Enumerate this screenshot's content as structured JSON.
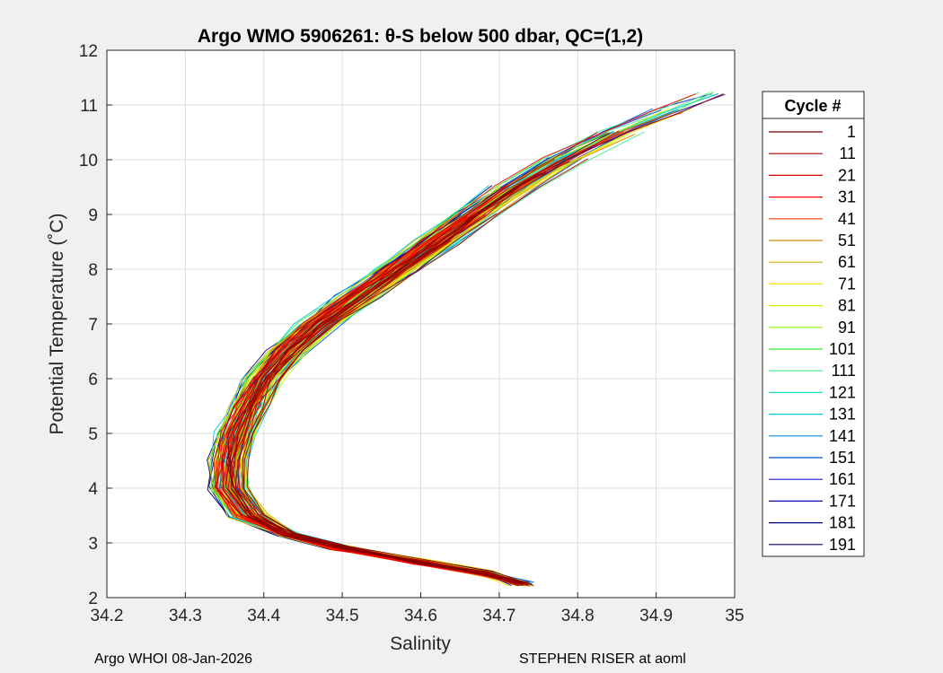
{
  "chart_data": {
    "type": "line",
    "title": "Argo WMO 5906261: θ-S below 500 dbar,  QC=(1,2)",
    "xlabel": "Salinity",
    "ylabel": "Potential Temperature (˚C)",
    "xlim": [
      34.2,
      35
    ],
    "ylim": [
      2,
      12
    ],
    "xticks": [
      "34.2",
      "34.3",
      "34.4",
      "34.5",
      "34.6",
      "34.7",
      "34.8",
      "34.9",
      "35"
    ],
    "yticks": [
      "2",
      "3",
      "4",
      "5",
      "6",
      "7",
      "8",
      "9",
      "10",
      "11",
      "12"
    ],
    "grid": true,
    "legend": {
      "title": "Cycle #",
      "placement": "right, outside",
      "entries": [
        {
          "label": "1",
          "color": "#7f0000"
        },
        {
          "label": "11",
          "color": "#a80000"
        },
        {
          "label": "21",
          "color": "#d40000"
        },
        {
          "label": "31",
          "color": "#ff0000"
        },
        {
          "label": "41",
          "color": "#ff3a00"
        },
        {
          "label": "51",
          "color": "#d48a00"
        },
        {
          "label": "61",
          "color": "#d4b400"
        },
        {
          "label": "71",
          "color": "#ffe600"
        },
        {
          "label": "81",
          "color": "#d6f000"
        },
        {
          "label": "91",
          "color": "#8ff000"
        },
        {
          "label": "101",
          "color": "#44ee3a"
        },
        {
          "label": "111",
          "color": "#3aee8a"
        },
        {
          "label": "121",
          "color": "#22e6c8"
        },
        {
          "label": "131",
          "color": "#00c8e6"
        },
        {
          "label": "141",
          "color": "#0090d8"
        },
        {
          "label": "151",
          "color": "#0050e0"
        },
        {
          "label": "161",
          "color": "#1a1ad6"
        },
        {
          "label": "171",
          "color": "#0a0aa8"
        },
        {
          "label": "181",
          "color": "#00007a"
        },
        {
          "label": "191",
          "color": "#00005a"
        }
      ]
    },
    "series_shape": [
      {
        "x": 34.73,
        "y": 2.25
      },
      {
        "x": 34.68,
        "y": 2.45
      },
      {
        "x": 34.6,
        "y": 2.65
      },
      {
        "x": 34.5,
        "y": 2.9
      },
      {
        "x": 34.43,
        "y": 3.15
      },
      {
        "x": 34.38,
        "y": 3.5
      },
      {
        "x": 34.355,
        "y": 4.0
      },
      {
        "x": 34.355,
        "y": 4.5
      },
      {
        "x": 34.365,
        "y": 5.0
      },
      {
        "x": 34.38,
        "y": 5.5
      },
      {
        "x": 34.4,
        "y": 6.0
      },
      {
        "x": 34.43,
        "y": 6.5
      },
      {
        "x": 34.47,
        "y": 7.0
      },
      {
        "x": 34.52,
        "y": 7.5
      },
      {
        "x": 34.57,
        "y": 8.0
      },
      {
        "x": 34.62,
        "y": 8.5
      },
      {
        "x": 34.67,
        "y": 9.0
      },
      {
        "x": 34.72,
        "y": 9.5
      },
      {
        "x": 34.78,
        "y": 10.0
      },
      {
        "x": 34.85,
        "y": 10.5
      },
      {
        "x": 34.92,
        "y": 10.9
      },
      {
        "x": 34.98,
        "y": 11.2
      }
    ]
  },
  "footer": {
    "left": "Argo WHOI 08-Jan-2026",
    "right": "STEPHEN RISER at aoml"
  }
}
